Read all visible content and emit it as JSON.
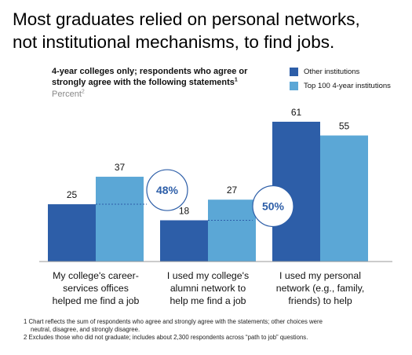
{
  "headline": {
    "line1": "Most graduates relied on personal networks,",
    "line2": "not institutional mechanisms, to find jobs."
  },
  "chart_data": {
    "type": "bar",
    "subtitle_line1": "4-year colleges only; respondents who agree or",
    "subtitle_line2": "strongly agree with the following statements",
    "subtitle_sup": "1",
    "unit": "Percent",
    "unit_sup": "2",
    "categories": [
      [
        "My college's career-",
        "services offices",
        "helped me find a job"
      ],
      [
        "I used my college's",
        "alumni network to",
        "help me find a job"
      ],
      [
        "I used my personal",
        "network (e.g., family,",
        "friends) to help"
      ]
    ],
    "series": [
      {
        "name": "Other institutions",
        "color": "#2d5ea8",
        "values": [
          25,
          18,
          61
        ]
      },
      {
        "name": "Top 100 4-year institutions",
        "color": "#5ba7d6",
        "values": [
          37,
          27,
          55
        ]
      }
    ],
    "callouts": [
      {
        "category_index": 0,
        "text": "48%"
      },
      {
        "category_index": 1,
        "text": "50%"
      }
    ],
    "ylim": [
      0,
      61
    ],
    "grid": false,
    "legend_position": "top-right"
  },
  "footnotes": {
    "fn1_line1": "1 Chart reflects the sum of respondents who agree and strongly agree with the statements; other choices were",
    "fn1_line2": "neutral, disagree, and strongly disagree.",
    "fn2": "2 Excludes those who did not graduate; includes about 2,300 respondents across “path to job” questions."
  }
}
